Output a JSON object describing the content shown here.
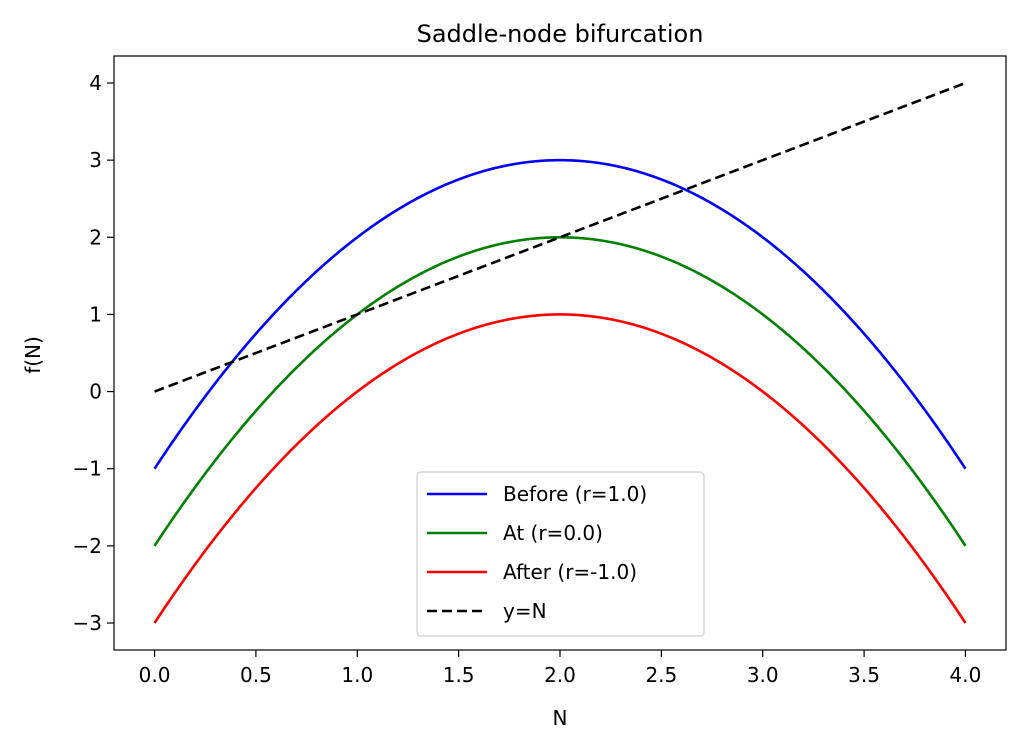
{
  "chart_data": {
    "type": "line",
    "title": "Saddle-node bifurcation",
    "xlabel": "N",
    "ylabel": "f(N)",
    "xlim": [
      -0.2,
      4.2
    ],
    "ylim": [
      -3.35,
      4.35
    ],
    "xticks": [
      0.0,
      0.5,
      1.0,
      1.5,
      2.0,
      2.5,
      3.0,
      3.5,
      4.0
    ],
    "xtick_labels": [
      "0.0",
      "0.5",
      "1.0",
      "1.5",
      "2.0",
      "2.5",
      "3.0",
      "3.5",
      "4.0"
    ],
    "yticks": [
      -3,
      -2,
      -1,
      0,
      1,
      2,
      3,
      4
    ],
    "ytick_labels": [
      "−3",
      "−2",
      "−1",
      "0",
      "1",
      "2",
      "3",
      "4"
    ],
    "grid": false,
    "legend_position": "lower-center",
    "series": [
      {
        "name": "Before (r=1.0)",
        "color": "#0000ff",
        "style": "solid",
        "x": [
          0.0,
          0.25,
          0.5,
          0.75,
          1.0,
          1.25,
          1.5,
          1.75,
          2.0,
          2.25,
          2.5,
          2.75,
          3.0,
          3.25,
          3.5,
          3.75,
          4.0
        ],
        "y": [
          -1.0,
          -0.0625,
          0.75,
          1.4375,
          2.0,
          2.4375,
          2.75,
          2.9375,
          3.0,
          2.9375,
          2.75,
          2.4375,
          2.0,
          1.4375,
          0.75,
          -0.0625,
          -1.0
        ]
      },
      {
        "name": "At (r=0.0)",
        "color": "#008000",
        "style": "solid",
        "x": [
          0.0,
          0.25,
          0.5,
          0.75,
          1.0,
          1.25,
          1.5,
          1.75,
          2.0,
          2.25,
          2.5,
          2.75,
          3.0,
          3.25,
          3.5,
          3.75,
          4.0
        ],
        "y": [
          -2.0,
          -1.0625,
          -0.25,
          0.4375,
          1.0,
          1.4375,
          1.75,
          1.9375,
          2.0,
          1.9375,
          1.75,
          1.4375,
          1.0,
          0.4375,
          -0.25,
          -1.0625,
          -2.0
        ]
      },
      {
        "name": "After (r=-1.0)",
        "color": "#ff0000",
        "style": "solid",
        "x": [
          0.0,
          0.25,
          0.5,
          0.75,
          1.0,
          1.25,
          1.5,
          1.75,
          2.0,
          2.25,
          2.5,
          2.75,
          3.0,
          3.25,
          3.5,
          3.75,
          4.0
        ],
        "y": [
          -3.0,
          -2.0625,
          -1.25,
          -0.5625,
          0.0,
          0.4375,
          0.75,
          0.9375,
          1.0,
          0.9375,
          0.75,
          0.4375,
          0.0,
          -0.5625,
          -1.25,
          -2.0625,
          -3.0
        ]
      },
      {
        "name": "y=N",
        "color": "#000000",
        "style": "dashed",
        "x": [
          0.0,
          4.0
        ],
        "y": [
          0.0,
          4.0
        ]
      }
    ]
  }
}
